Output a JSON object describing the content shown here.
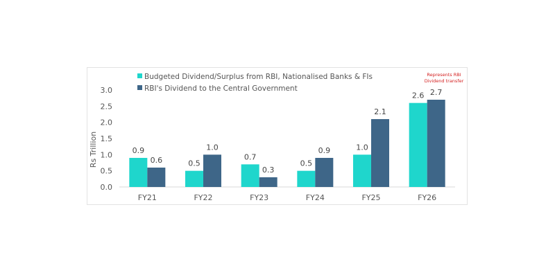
{
  "chart_data": {
    "type": "bar",
    "title": "",
    "xlabel": "",
    "ylabel": "Rs Trillion",
    "ylim": [
      0,
      3.0
    ],
    "yticks": [
      "0.0",
      "0.5",
      "1.0",
      "1.5",
      "2.0",
      "2.5",
      "3.0"
    ],
    "grid": false,
    "legend_position": "top-left",
    "categories": [
      "FY21",
      "FY22",
      "FY23",
      "FY24",
      "FY25",
      "FY26"
    ],
    "series": [
      {
        "name": "Budgeted Dividend/Surplus from RBI, Nationalised Banks & FIs",
        "color": "#1fd6cc",
        "values": [
          0.9,
          0.5,
          0.7,
          0.5,
          1.0,
          2.6
        ],
        "labels": [
          "0.9",
          "0.5",
          "0.7",
          "0.5",
          "1.0",
          "2.6"
        ]
      },
      {
        "name": "RBI's Dividend to the Central Government",
        "color": "#3e6688",
        "values": [
          0.6,
          1.0,
          0.3,
          0.9,
          2.1,
          2.7
        ],
        "labels": [
          "0.6",
          "1.0",
          "0.3",
          "0.9",
          "2.1",
          "2.7"
        ]
      }
    ],
    "annotation": {
      "line1": "Represents RBI",
      "line2": "Dividend transfer",
      "color": "#d42020"
    }
  }
}
